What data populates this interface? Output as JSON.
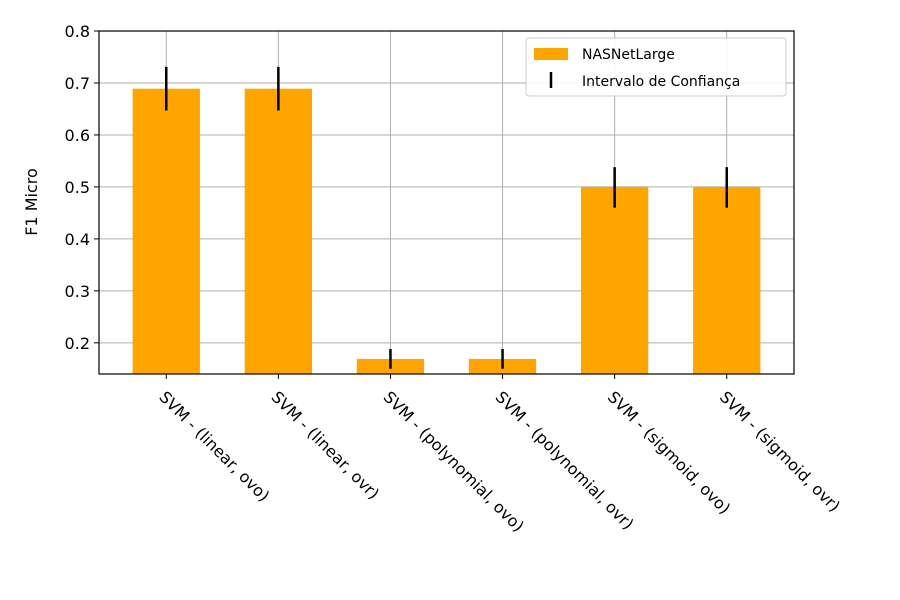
{
  "chart_data": {
    "type": "bar",
    "title": "",
    "xlabel": "",
    "ylabel": "F1 Micro",
    "ylim": [
      0.14,
      0.8
    ],
    "yticks": [
      "0.2",
      "0.3",
      "0.4",
      "0.5",
      "0.6",
      "0.7",
      "0.8"
    ],
    "grid": true,
    "legend_position": "top-right",
    "categories": [
      "SVM - (linear, ovo)",
      "SVM - (linear, ovr)",
      "SVM - (polynomial, ovo)",
      "SVM - (polynomial, ovr)",
      "SVM - (sigmoid, ovo)",
      "SVM - (sigmoid, ovr)"
    ],
    "series": [
      {
        "name": "NASNetLarge",
        "color": "#ffa500",
        "values": [
          0.689,
          0.689,
          0.169,
          0.169,
          0.5,
          0.5
        ],
        "error_low": [
          0.647,
          0.647,
          0.15,
          0.15,
          0.46,
          0.46
        ],
        "error_high": [
          0.731,
          0.731,
          0.188,
          0.188,
          0.538,
          0.538
        ]
      }
    ],
    "error_bar_label": "Intervalo de Confiança",
    "error_bar_color": "#000000"
  }
}
